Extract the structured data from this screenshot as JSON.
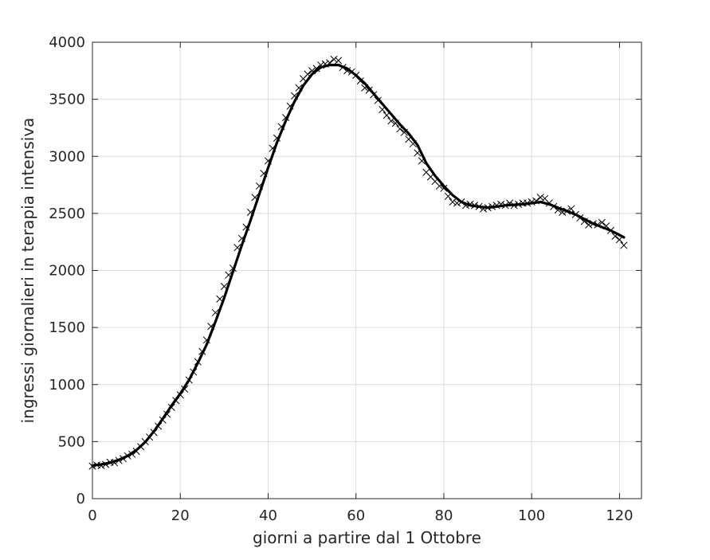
{
  "chart_data": {
    "type": "line",
    "title": "",
    "xlabel": "giorni a partire dal 1 Ottobre",
    "ylabel": "ingressi giornalieri in terapia intensiva",
    "xlim": [
      0,
      125
    ],
    "ylim": [
      0,
      4000
    ],
    "xticks": [
      0,
      20,
      40,
      60,
      80,
      100,
      120
    ],
    "yticks": [
      0,
      500,
      1000,
      1500,
      2000,
      2500,
      3000,
      3500,
      4000
    ],
    "xtick_labels": [
      "0",
      "20",
      "40",
      "60",
      "80",
      "100",
      "120"
    ],
    "ytick_labels": [
      "0",
      "500",
      "1000",
      "1500",
      "2000",
      "2500",
      "3000",
      "3500",
      "4000"
    ],
    "grid": true,
    "series": [
      {
        "style": "markers",
        "marker": "x",
        "color": "#000000",
        "x": [
          0,
          1,
          2,
          3,
          4,
          5,
          6,
          7,
          8,
          9,
          10,
          11,
          12,
          13,
          14,
          15,
          16,
          17,
          18,
          19,
          20,
          21,
          22,
          23,
          24,
          25,
          26,
          27,
          28,
          29,
          30,
          31,
          32,
          33,
          34,
          35,
          36,
          37,
          38,
          39,
          40,
          41,
          42,
          43,
          44,
          45,
          46,
          47,
          48,
          49,
          50,
          51,
          52,
          53,
          54,
          55,
          56,
          57,
          58,
          59,
          60,
          61,
          62,
          63,
          64,
          65,
          66,
          67,
          68,
          69,
          70,
          71,
          72,
          73,
          74,
          75,
          76,
          77,
          78,
          79,
          80,
          81,
          82,
          83,
          84,
          85,
          86,
          87,
          88,
          89,
          90,
          91,
          92,
          93,
          94,
          95,
          96,
          97,
          98,
          99,
          100,
          101,
          102,
          103,
          104,
          105,
          106,
          107,
          108,
          109,
          110,
          111,
          112,
          113,
          114,
          115,
          116,
          117,
          118,
          119,
          120,
          121
        ],
        "y": [
          285,
          295,
          290,
          300,
          320,
          315,
          335,
          350,
          375,
          390,
          415,
          455,
          500,
          540,
          580,
          635,
          690,
          740,
          800,
          860,
          910,
          960,
          1040,
          1110,
          1200,
          1290,
          1390,
          1510,
          1630,
          1750,
          1860,
          1960,
          2020,
          2200,
          2280,
          2380,
          2510,
          2640,
          2740,
          2850,
          2960,
          3070,
          3160,
          3260,
          3340,
          3440,
          3530,
          3600,
          3680,
          3720,
          3750,
          3770,
          3800,
          3810,
          3820,
          3850,
          3840,
          3780,
          3750,
          3740,
          3710,
          3660,
          3600,
          3580,
          3540,
          3490,
          3410,
          3360,
          3310,
          3290,
          3240,
          3210,
          3150,
          3110,
          3030,
          2960,
          2860,
          2820,
          2780,
          2740,
          2720,
          2650,
          2600,
          2590,
          2600,
          2570,
          2580,
          2570,
          2560,
          2540,
          2550,
          2560,
          2570,
          2580,
          2570,
          2590,
          2570,
          2580,
          2590,
          2590,
          2600,
          2610,
          2640,
          2630,
          2590,
          2560,
          2530,
          2510,
          2520,
          2540,
          2490,
          2460,
          2430,
          2400,
          2410,
          2400,
          2420,
          2390,
          2350,
          2300,
          2270,
          2220
        ]
      },
      {
        "style": "line",
        "color": "#000000",
        "x": [
          0,
          2,
          4,
          6,
          8,
          10,
          12,
          14,
          16,
          18,
          20,
          22,
          24,
          26,
          28,
          30,
          32,
          34,
          36,
          38,
          40,
          42,
          44,
          46,
          48,
          50,
          52,
          54,
          56,
          58,
          60,
          62,
          64,
          66,
          68,
          70,
          72,
          74,
          76,
          78,
          80,
          82,
          84,
          86,
          88,
          90,
          92,
          94,
          96,
          98,
          100,
          102,
          104,
          106,
          108,
          110,
          112,
          114,
          116,
          118,
          120,
          121
        ],
        "y": [
          290,
          300,
          315,
          340,
          375,
          425,
          495,
          590,
          700,
          815,
          920,
          1040,
          1190,
          1350,
          1550,
          1760,
          1990,
          2220,
          2440,
          2670,
          2900,
          3120,
          3310,
          3480,
          3620,
          3720,
          3780,
          3800,
          3800,
          3770,
          3710,
          3640,
          3550,
          3460,
          3370,
          3280,
          3200,
          3100,
          2940,
          2830,
          2740,
          2660,
          2600,
          2570,
          2560,
          2550,
          2560,
          2570,
          2575,
          2580,
          2590,
          2600,
          2580,
          2550,
          2520,
          2490,
          2450,
          2410,
          2380,
          2350,
          2310,
          2290
        ]
      }
    ]
  }
}
